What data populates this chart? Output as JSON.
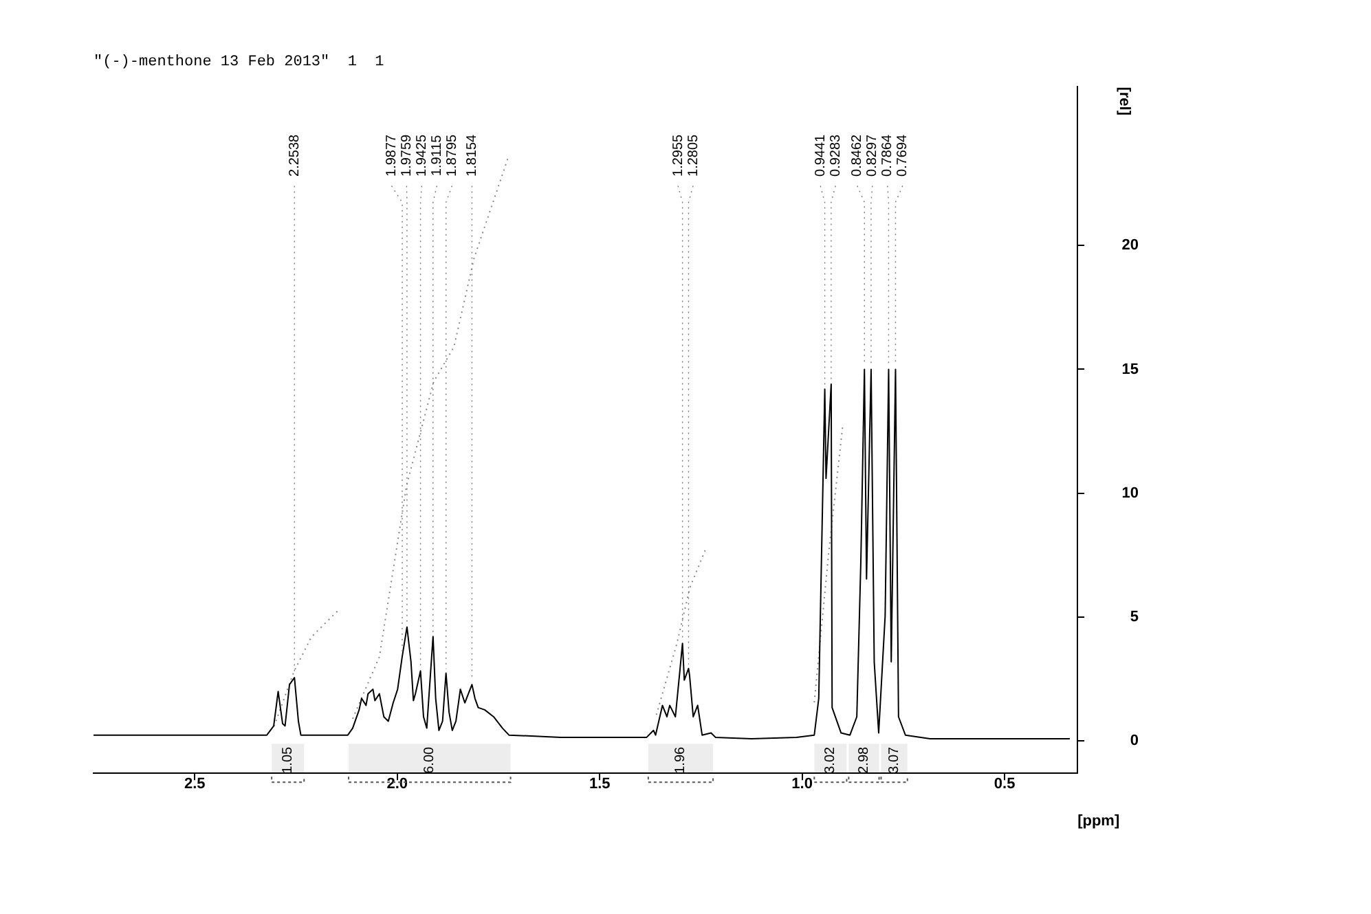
{
  "chart_data": {
    "type": "line",
    "title": "\"(-)-menthone 13 Feb 2013\"  1  1",
    "xlabel": "[ppm]",
    "ylabel": "[rel]",
    "xlim": [
      2.75,
      0.32
    ],
    "xticks": [
      2.5,
      {
        "value": 2,
        "label": "2.0"
      },
      1.5,
      {
        "value": 1,
        "label": "1.0"
      },
      0.5
    ],
    "ylim": [
      -1.3,
      26.4
    ],
    "yticks": [
      0,
      5,
      10,
      15,
      20
    ],
    "grid": false,
    "legend": false,
    "marker": "none",
    "series": [
      {
        "color": "#000000",
        "line_style": "solid",
        "x": [
          2.75,
          2.41,
          2.322,
          2.305,
          2.294,
          2.283,
          2.277,
          2.266,
          2.2538,
          2.244,
          2.238,
          2.122,
          2.11,
          2.094,
          2.088,
          2.077,
          2.072,
          2.06,
          2.055,
          2.044,
          2.033,
          2.022,
          2.01,
          1.999,
          1.9877,
          1.9759,
          1.966,
          1.96,
          1.955,
          1.9425,
          1.935,
          1.927,
          1.922,
          1.9115,
          1.905,
          1.897,
          1.888,
          1.8795,
          1.872,
          1.864,
          1.855,
          1.844,
          1.833,
          1.8154,
          1.808,
          1.8,
          1.784,
          1.762,
          1.74,
          1.724,
          1.596,
          1.384,
          1.367,
          1.362,
          1.345,
          1.334,
          1.327,
          1.313,
          1.302,
          1.2955,
          1.291,
          1.2805,
          1.278,
          1.269,
          1.258,
          1.247,
          1.225,
          1.214,
          1.125,
          1.014,
          0.97,
          0.959,
          0.9441,
          0.941,
          0.9283,
          0.926,
          0.904,
          0.882,
          0.865,
          0.855,
          0.8462,
          0.841,
          0.8297,
          0.822,
          0.811,
          0.795,
          0.7864,
          0.78,
          0.7694,
          0.762,
          0.745,
          0.684,
          0.339
        ],
        "values": [
          0.24,
          0.24,
          0.24,
          0.61,
          2.0,
          0.7,
          0.61,
          2.28,
          2.56,
          0.8,
          0.24,
          0.24,
          0.52,
          1.26,
          1.72,
          1.44,
          1.91,
          2.09,
          1.63,
          1.91,
          0.98,
          0.8,
          1.54,
          2.09,
          3.4,
          4.6,
          3.2,
          1.63,
          1.91,
          2.83,
          0.98,
          0.52,
          1.72,
          4.22,
          1.72,
          0.43,
          0.8,
          2.74,
          1.17,
          0.43,
          0.8,
          2.09,
          1.54,
          2.28,
          1.72,
          1.35,
          1.26,
          0.98,
          0.52,
          0.24,
          0.15,
          0.15,
          0.43,
          0.24,
          1.44,
          0.98,
          1.44,
          0.98,
          2.83,
          3.94,
          2.46,
          2.93,
          2.65,
          0.98,
          1.44,
          0.24,
          0.33,
          0.15,
          0.09,
          0.15,
          0.24,
          1.72,
          14.2,
          10.6,
          14.4,
          1.35,
          0.33,
          0.24,
          0.98,
          7.28,
          15,
          6.54,
          15,
          3.2,
          0.33,
          5.06,
          15,
          3.2,
          15,
          0.98,
          0.24,
          0.09,
          0.09
        ]
      },
      {
        "color": "#888888",
        "line_style": "dotted",
        "x": [
          2.304,
          2.255,
          2.212,
          2.144,
          2.13,
          2.11,
          2.044,
          1.977,
          1.91,
          1.86,
          1.81,
          1.727,
          1.5,
          1.36,
          1.31,
          1.277,
          1.237,
          1.1,
          0.97,
          0.935,
          0.9
        ],
        "values": [
          0.6,
          2.8,
          4.2,
          5.3,
          null,
          0.9,
          3.4,
          10.3,
          14.5,
          15.9,
          19.5,
          23.5,
          null,
          1.06,
          3.9,
          6.2,
          7.8,
          null,
          1.56,
          7.5,
          12.7
        ]
      }
    ],
    "annotations": [
      {
        "text": "2.2538",
        "x": 2.2538,
        "y": 2.56
      },
      {
        "text": "1.9877",
        "x": 1.9877,
        "y": 3.4
      },
      {
        "text": "1.9759",
        "x": 1.9759,
        "y": 4.6
      },
      {
        "text": "1.9425",
        "x": 1.9425,
        "y": 2.83
      },
      {
        "text": "1.9115",
        "x": 1.9115,
        "y": 4.22
      },
      {
        "text": "1.8795",
        "x": 1.8795,
        "y": 2.74
      },
      {
        "text": "1.8154",
        "x": 1.8154,
        "y": 2.28
      },
      {
        "text": "1.2955",
        "x": 1.2955,
        "y": 3.94
      },
      {
        "text": "1.2805",
        "x": 1.2805,
        "y": 2.93
      },
      {
        "text": "0.9441",
        "x": 0.9441,
        "y": 14.2
      },
      {
        "text": "0.9283",
        "x": 0.9283,
        "y": 14.4
      },
      {
        "text": "0.8462",
        "x": 0.8462,
        "y": 15
      },
      {
        "text": "0.8297",
        "x": 0.8297,
        "y": 15
      },
      {
        "text": "0.7864",
        "x": 0.7864,
        "y": 15
      },
      {
        "text": "0.7694",
        "x": 0.7694,
        "y": 15
      }
    ],
    "bands": [
      {
        "axis": "x",
        "from": 2.31,
        "to": 2.23,
        "label": "1.05"
      },
      {
        "axis": "x",
        "from": 2.12,
        "to": 1.72,
        "label": "6.00"
      },
      {
        "axis": "x",
        "from": 1.38,
        "to": 1.22,
        "label": "1.96"
      },
      {
        "axis": "x",
        "from": 0.97,
        "to": 0.89,
        "label": "3.02"
      },
      {
        "axis": "x",
        "from": 0.885,
        "to": 0.81,
        "label": "2.98"
      },
      {
        "axis": "x",
        "from": 0.805,
        "to": 0.74,
        "label": "3.07"
      }
    ]
  }
}
